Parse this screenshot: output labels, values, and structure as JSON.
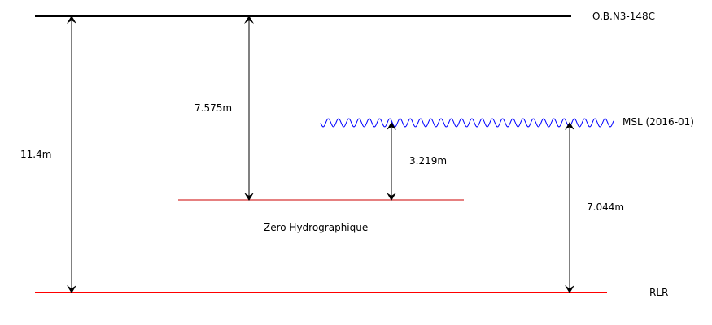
{
  "levels": {
    "benchmark": {
      "label": "O.B.N3-148C",
      "color": "#000000"
    },
    "msl": {
      "label": "MSL (2016-01)",
      "color": "#0000ff"
    },
    "zero_hydro": {
      "label": "Zero Hydrographique",
      "color": "#cc0000"
    },
    "rlr": {
      "label": "RLR",
      "color": "#ff0000"
    }
  },
  "distances": {
    "benchmark_to_rlr": "11.4m",
    "benchmark_to_zero": "7.575m",
    "msl_to_zero": "3.219m",
    "msl_to_rlr": "7.044m"
  }
}
